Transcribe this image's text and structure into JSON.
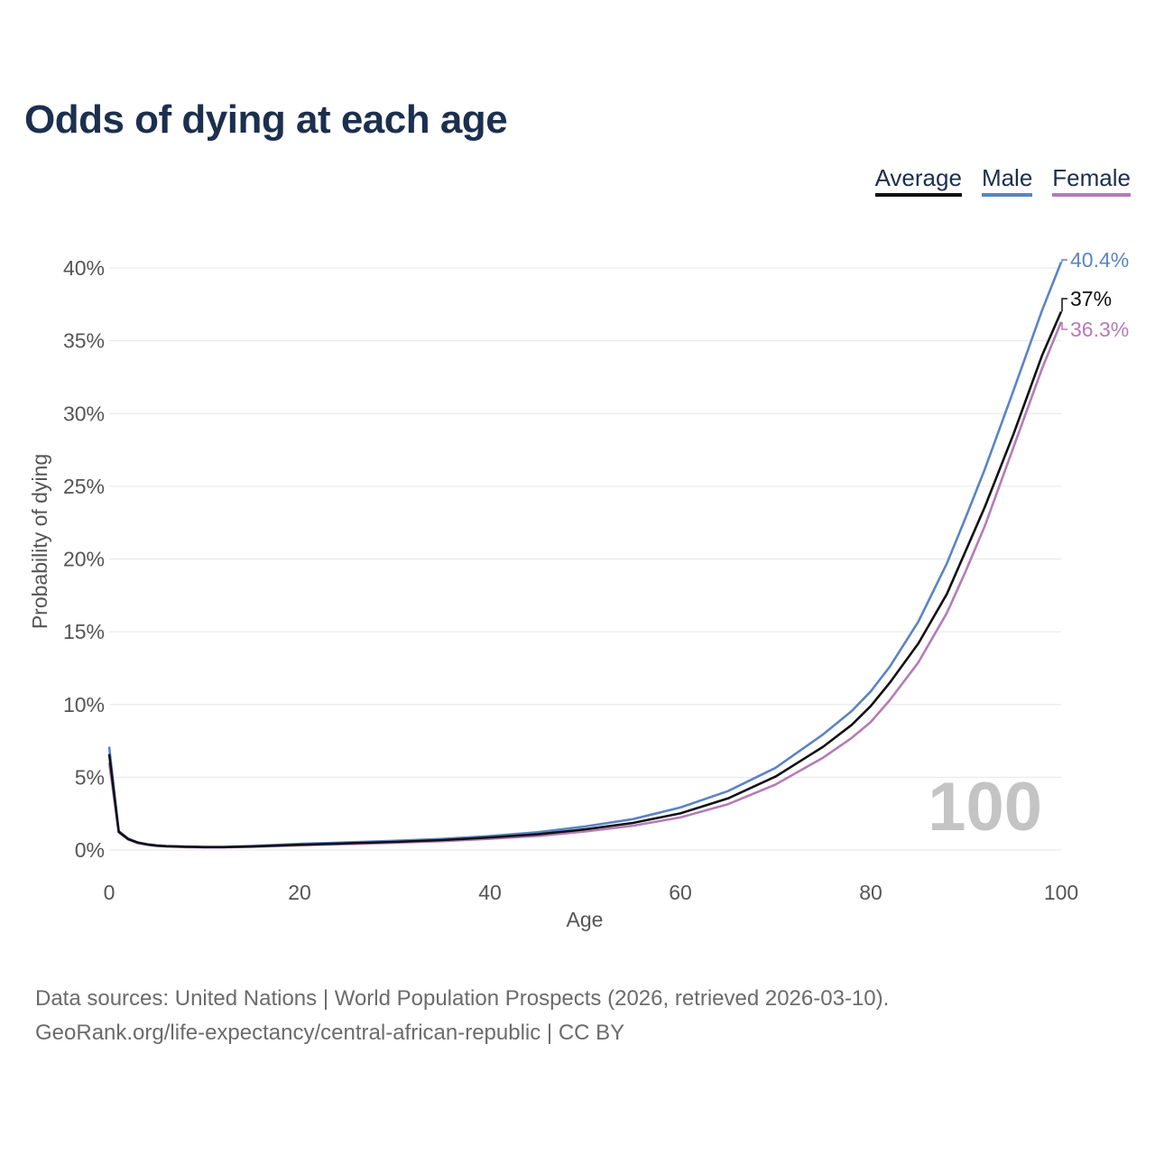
{
  "title": "Odds of dying at each age",
  "legend": [
    {
      "label": "Average",
      "color": "#111111"
    },
    {
      "label": "Male",
      "color": "#5b84c4"
    },
    {
      "label": "Female",
      "color": "#b57bb8"
    }
  ],
  "chart_data": {
    "type": "line",
    "xlabel": "Age",
    "ylabel": "Probability of dying",
    "xlim": [
      0,
      100
    ],
    "ylim": [
      0,
      40
    ],
    "x_ticks": [
      0,
      20,
      40,
      60,
      80,
      100
    ],
    "x_tick_labels": [
      "0",
      "20",
      "40",
      "60",
      "80",
      "100"
    ],
    "y_ticks": [
      0,
      5,
      10,
      15,
      20,
      25,
      30,
      35,
      40
    ],
    "y_tick_labels": [
      "0%",
      "5%",
      "10%",
      "15%",
      "20%",
      "25%",
      "30%",
      "35%",
      "40%"
    ],
    "grid": true,
    "watermark": "100",
    "end_labels": [
      "37%",
      "40.4%",
      "36.3%"
    ],
    "series": [
      {
        "name": "Average",
        "color": "#111111",
        "points": [
          [
            0,
            6.6
          ],
          [
            1,
            1.25
          ],
          [
            2,
            0.75
          ],
          [
            3,
            0.5
          ],
          [
            4,
            0.38
          ],
          [
            5,
            0.3
          ],
          [
            6,
            0.26
          ],
          [
            7,
            0.24
          ],
          [
            8,
            0.22
          ],
          [
            9,
            0.21
          ],
          [
            10,
            0.2
          ],
          [
            12,
            0.2
          ],
          [
            15,
            0.24
          ],
          [
            20,
            0.36
          ],
          [
            25,
            0.46
          ],
          [
            30,
            0.56
          ],
          [
            35,
            0.68
          ],
          [
            40,
            0.86
          ],
          [
            45,
            1.08
          ],
          [
            50,
            1.42
          ],
          [
            55,
            1.86
          ],
          [
            60,
            2.52
          ],
          [
            65,
            3.55
          ],
          [
            70,
            5.05
          ],
          [
            75,
            7.1
          ],
          [
            78,
            8.6
          ],
          [
            80,
            9.9
          ],
          [
            82,
            11.5
          ],
          [
            85,
            14.2
          ],
          [
            88,
            17.6
          ],
          [
            90,
            20.6
          ],
          [
            92,
            23.6
          ],
          [
            95,
            28.6
          ],
          [
            98,
            34.0
          ],
          [
            100,
            37.0
          ]
        ]
      },
      {
        "name": "Male",
        "color": "#5b84c4",
        "points": [
          [
            0,
            7.1
          ],
          [
            1,
            1.3
          ],
          [
            2,
            0.78
          ],
          [
            3,
            0.53
          ],
          [
            4,
            0.4
          ],
          [
            5,
            0.32
          ],
          [
            6,
            0.28
          ],
          [
            7,
            0.26
          ],
          [
            8,
            0.24
          ],
          [
            9,
            0.23
          ],
          [
            10,
            0.22
          ],
          [
            12,
            0.22
          ],
          [
            15,
            0.27
          ],
          [
            20,
            0.42
          ],
          [
            25,
            0.52
          ],
          [
            30,
            0.63
          ],
          [
            35,
            0.76
          ],
          [
            40,
            0.96
          ],
          [
            45,
            1.22
          ],
          [
            50,
            1.62
          ],
          [
            55,
            2.12
          ],
          [
            60,
            2.92
          ],
          [
            65,
            4.05
          ],
          [
            70,
            5.65
          ],
          [
            75,
            7.95
          ],
          [
            78,
            9.55
          ],
          [
            80,
            10.9
          ],
          [
            82,
            12.6
          ],
          [
            85,
            15.7
          ],
          [
            88,
            19.7
          ],
          [
            90,
            22.9
          ],
          [
            92,
            26.2
          ],
          [
            95,
            31.6
          ],
          [
            98,
            37.1
          ],
          [
            100,
            40.4
          ]
        ]
      },
      {
        "name": "Female",
        "color": "#b57bb8",
        "points": [
          [
            0,
            6.0
          ],
          [
            1,
            1.2
          ],
          [
            2,
            0.72
          ],
          [
            3,
            0.48
          ],
          [
            4,
            0.36
          ],
          [
            5,
            0.28
          ],
          [
            6,
            0.24
          ],
          [
            7,
            0.22
          ],
          [
            8,
            0.2
          ],
          [
            9,
            0.19
          ],
          [
            10,
            0.18
          ],
          [
            12,
            0.18
          ],
          [
            15,
            0.22
          ],
          [
            20,
            0.32
          ],
          [
            25,
            0.41
          ],
          [
            30,
            0.5
          ],
          [
            35,
            0.61
          ],
          [
            40,
            0.77
          ],
          [
            45,
            0.97
          ],
          [
            50,
            1.27
          ],
          [
            55,
            1.67
          ],
          [
            60,
            2.24
          ],
          [
            65,
            3.15
          ],
          [
            70,
            4.5
          ],
          [
            75,
            6.35
          ],
          [
            78,
            7.7
          ],
          [
            80,
            8.8
          ],
          [
            82,
            10.3
          ],
          [
            85,
            12.9
          ],
          [
            88,
            16.3
          ],
          [
            90,
            19.2
          ],
          [
            92,
            22.3
          ],
          [
            95,
            27.7
          ],
          [
            98,
            33.1
          ],
          [
            100,
            36.3
          ]
        ]
      }
    ]
  },
  "source": {
    "line1": "Data sources: United Nations | World Population Prospects (2026, retrieved 2026-03-10).",
    "line2": "GeoRank.org/life-expectancy/central-african-republic | CC BY"
  }
}
